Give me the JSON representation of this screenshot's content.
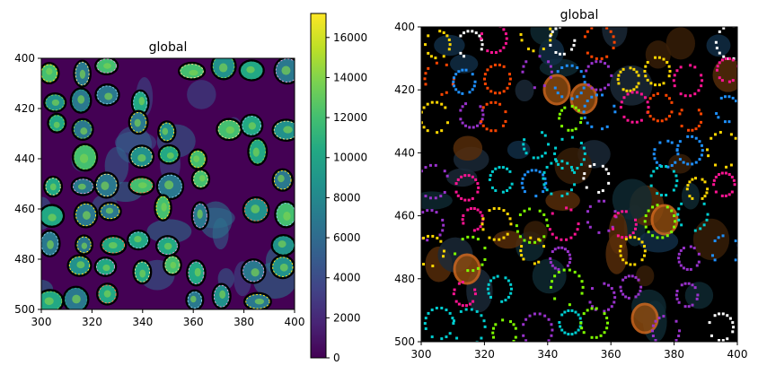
{
  "chart_data": [
    {
      "type": "heatmap",
      "title": "global",
      "colormap": "viridis",
      "xlim": [
        300,
        400
      ],
      "ylim": [
        500,
        400
      ],
      "xticks": [
        300,
        320,
        340,
        360,
        380,
        400
      ],
      "yticks": [
        400,
        420,
        440,
        460,
        480,
        500
      ],
      "colorbar": {
        "vmin": 0,
        "vmax": 17200,
        "ticks": [
          0,
          2000,
          4000,
          6000,
          8000,
          10000,
          12000,
          14000,
          16000
        ]
      },
      "background": "#440154",
      "segment_outline_color": "#000000"
    },
    {
      "type": "heatmap",
      "title": "global",
      "xlim": [
        300,
        400
      ],
      "ylim": [
        500,
        400
      ],
      "xticks": [
        300,
        320,
        340,
        360,
        380,
        400
      ],
      "yticks": [
        400,
        420,
        440,
        460,
        480,
        500
      ],
      "background": "#000000",
      "overlay_palette": [
        "#ff4500",
        "#1e90ff",
        "#9932cc",
        "#7fff00",
        "#ff1493",
        "#00ced1",
        "#ffd700",
        "#ffffff"
      ]
    }
  ]
}
